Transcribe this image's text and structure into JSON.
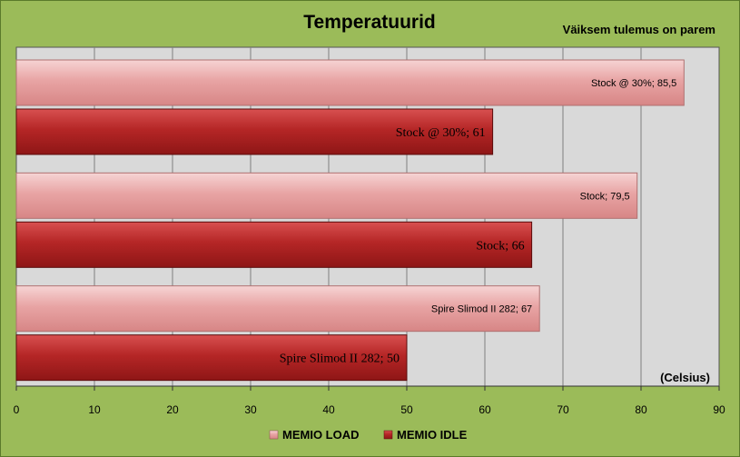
{
  "chart_data": {
    "type": "bar",
    "orientation": "horizontal",
    "title": "Temperatuurid",
    "subtitle": "Väiksem tulemus on parem",
    "unit_label": "(Celsius)",
    "xlim": [
      0,
      90
    ],
    "x_ticks": [
      0,
      10,
      20,
      30,
      40,
      50,
      60,
      70,
      80,
      90
    ],
    "grid": true,
    "legend_position": "bottom",
    "series": [
      {
        "name": "MEMIO LOAD",
        "color": "#e8a8a8",
        "values": [
          85.5,
          79.5,
          67
        ],
        "labels": [
          "Stock @ 30%; 85,5",
          "Stock; 79,5",
          "Spire Slimod II 282; 67"
        ]
      },
      {
        "name": "MEMIO IDLE",
        "color": "#b52a2a",
        "values": [
          61,
          66,
          50
        ],
        "labels": [
          "Stock @ 30%; 61",
          "Stock; 66",
          "Spire Slimod II 282; 50"
        ]
      }
    ],
    "groups": [
      "Stock @ 30%",
      "Stock",
      "Spire Slimod II 282"
    ]
  }
}
